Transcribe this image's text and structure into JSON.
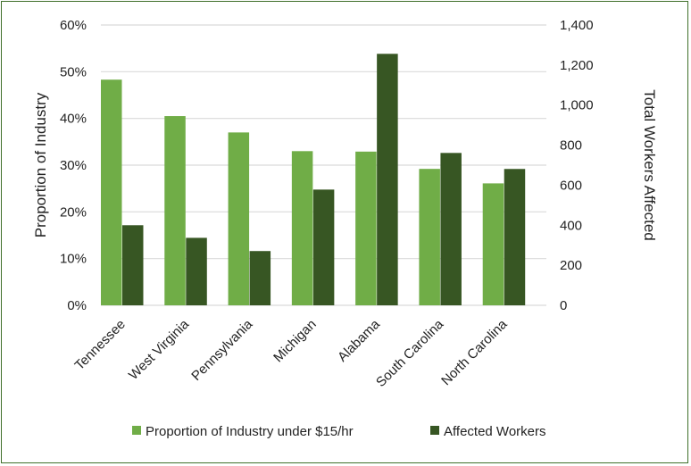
{
  "chart_data": {
    "type": "bar",
    "categories": [
      "Tennessee",
      "West Virginia",
      "Pennsylvania",
      "Michigan",
      "Alabama",
      "South Carolina",
      "North Carolina"
    ],
    "series": [
      {
        "name": "Proportion of Industry under $15/hr",
        "axis": "left",
        "color": "#70ad47",
        "values": [
          0.483,
          0.405,
          0.37,
          0.33,
          0.329,
          0.292,
          0.261
        ]
      },
      {
        "name": "Affected Workers",
        "axis": "right",
        "color": "#375623",
        "values": [
          400,
          337,
          271,
          578,
          1256,
          761,
          681
        ]
      }
    ],
    "ylabel": "Proportion of Industry",
    "y2label": "Total Workers Affected",
    "ylim": [
      0,
      0.6
    ],
    "y2lim": [
      0,
      1400
    ],
    "yticks": [
      "0%",
      "10%",
      "20%",
      "30%",
      "40%",
      "50%",
      "60%"
    ],
    "y2ticks": [
      "0",
      "200",
      "400",
      "600",
      "800",
      "1,000",
      "1,200",
      "1,400"
    ],
    "grid": true,
    "legend": "bottom"
  }
}
